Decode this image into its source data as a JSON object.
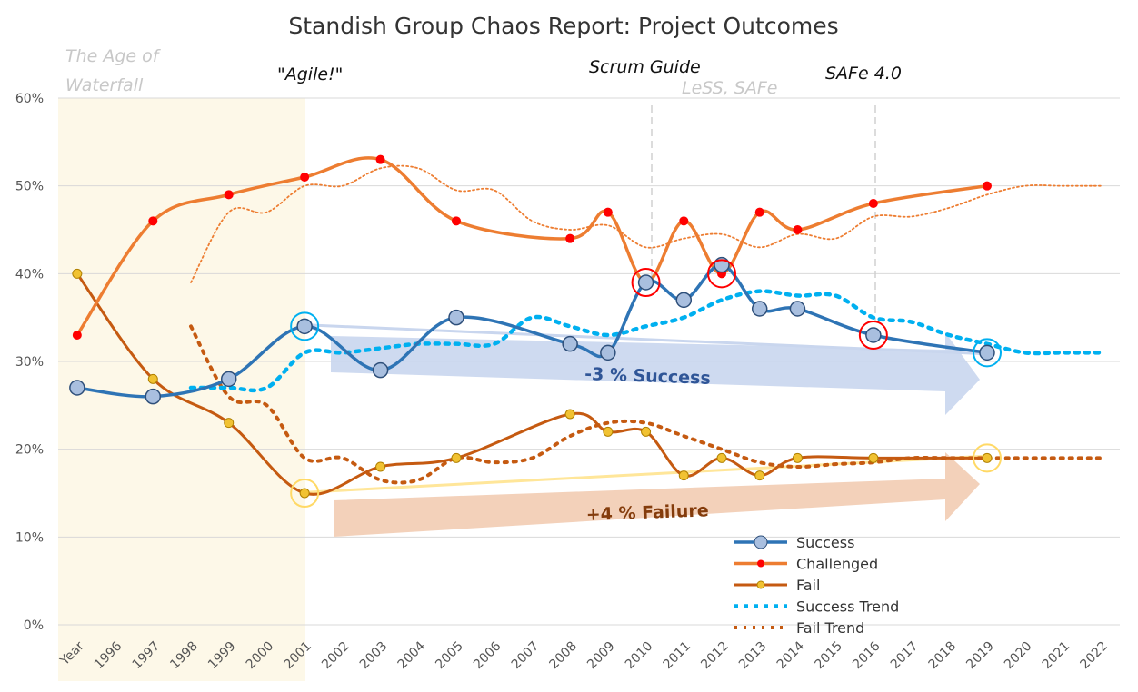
{
  "chart_data": {
    "type": "line",
    "title": "Standish Group Chaos Report: Project Outcomes",
    "categories": [
      "Year",
      "1996",
      "1997",
      "1998",
      "1999",
      "2000",
      "2001",
      "2002",
      "2003",
      "2004",
      "2005",
      "2006",
      "2007",
      "2008",
      "2009",
      "2010",
      "2011",
      "2012",
      "2013",
      "2014",
      "2015",
      "2016",
      "2017",
      "2018",
      "2019",
      "2020",
      "2021",
      "2022"
    ],
    "yticks": [
      "0%",
      "10%",
      "20%",
      "30%",
      "40%",
      "50%",
      "60%"
    ],
    "ylim": [
      0,
      60
    ],
    "series": [
      {
        "name": "Success",
        "color": "#2e74b5",
        "x": [
          0,
          2,
          4,
          6,
          8,
          10,
          13,
          14,
          15,
          16,
          17,
          18,
          19,
          21,
          24
        ],
        "values": [
          27,
          26,
          28,
          34,
          29,
          35,
          32,
          31,
          39,
          37,
          41,
          36,
          36,
          33,
          31
        ]
      },
      {
        "name": "Challenged",
        "color": "#ed7d31",
        "x": [
          0,
          2,
          4,
          6,
          8,
          10,
          13,
          14,
          15,
          16,
          17,
          18,
          19,
          21,
          24
        ],
        "values": [
          33,
          46,
          49,
          51,
          53,
          46,
          44,
          47,
          39,
          46,
          40,
          47,
          45,
          48,
          50
        ]
      },
      {
        "name": "Fail",
        "color": "#c55a11",
        "x": [
          0,
          2,
          4,
          6,
          8,
          10,
          13,
          14,
          15,
          16,
          17,
          18,
          19,
          21,
          24
        ],
        "values": [
          40,
          28,
          23,
          15,
          18,
          19,
          24,
          22,
          22,
          17,
          19,
          17,
          19,
          19,
          19
        ]
      },
      {
        "name": "Success Trend",
        "color": "#00b0f0",
        "x": [
          3,
          4,
          5,
          6,
          7,
          8,
          9,
          10,
          11,
          12,
          13,
          14,
          15,
          16,
          17,
          18,
          19,
          20,
          21,
          22,
          23,
          24,
          25,
          26,
          27
        ],
        "values": [
          27,
          27,
          27,
          31,
          31,
          31.5,
          32,
          32,
          32,
          35,
          34,
          33,
          34,
          35,
          37,
          38,
          37.5,
          37.5,
          35,
          34.5,
          33,
          32,
          31,
          31,
          31
        ]
      },
      {
        "name": "Fail Trend",
        "color": "#c55a11",
        "x": [
          3,
          4,
          5,
          6,
          7,
          8,
          9,
          10,
          11,
          12,
          13,
          14,
          15,
          16,
          17,
          18,
          19,
          20,
          21,
          22,
          23,
          24,
          25,
          26,
          27
        ],
        "values": [
          34,
          26,
          25,
          19,
          19,
          16.5,
          16.5,
          19,
          18.5,
          19,
          21.5,
          23,
          23,
          21.5,
          20,
          18.5,
          18,
          18.3,
          18.5,
          19,
          19,
          19,
          19,
          19,
          19
        ]
      },
      {
        "name": "Challenged Trend",
        "color": "#ed7d31",
        "x": [
          3,
          4,
          5,
          6,
          7,
          8,
          9,
          10,
          11,
          12,
          13,
          14,
          15,
          16,
          17,
          18,
          19,
          20,
          21,
          22,
          23,
          24,
          25,
          26,
          27
        ],
        "values": [
          39,
          47,
          47,
          50,
          50,
          52,
          52,
          49.5,
          49.5,
          46,
          45,
          45.5,
          43,
          44,
          44.5,
          43,
          44.5,
          44,
          46.5,
          46.5,
          47.5,
          49,
          50,
          50,
          50
        ]
      }
    ],
    "legend": [
      "Success",
      "Challenged",
      "Fail",
      "Success Trend",
      "Fail Trend"
    ],
    "legend_position": "bottom-right",
    "annotations": {
      "age_of_waterfall": "The Age of Waterfall",
      "agile": "\"Agile!\"",
      "scrum_guide": "Scrum Guide",
      "less_safe": "LeSS, SAFe",
      "safe4": "SAFe 4.0",
      "success_arrow": "-3 % Success",
      "failure_arrow": "+4 % Failure"
    }
  },
  "colors": {
    "success": "#2e74b5",
    "challenged": "#ed7d31",
    "fail": "#c55a11",
    "success_trend": "#00b0f0",
    "marker_success": "#a9bfdf",
    "marker_challenged": "#ff0000",
    "marker_fail": "#f1c232",
    "waterfall_bg": "#fdf8e8"
  }
}
